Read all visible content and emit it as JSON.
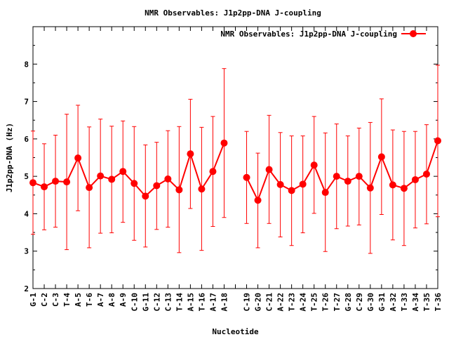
{
  "chart_data": {
    "type": "line",
    "title": "NMR Observables: J1p2pp-DNA J-coupling",
    "xlabel": "Nucleotide",
    "ylabel": "J1p2pp-DNA (Hz)",
    "ylim": [
      2,
      9
    ],
    "yticks": [
      "2",
      "3",
      "4",
      "5",
      "6",
      "7",
      "8"
    ],
    "grid": false,
    "legend_position": "top-right",
    "series": [
      {
        "name": "NMR Observables: J1p2pp-DNA J-coupling",
        "color": "#ff0000",
        "points": [
          {
            "x": 1,
            "label": "G-1",
            "value": 4.83,
            "low": 3.45,
            "high": 6.21
          },
          {
            "x": 2,
            "label": "C-2",
            "value": 4.72,
            "low": 3.57,
            "high": 5.87
          },
          {
            "x": 3,
            "label": "C-3",
            "value": 4.87,
            "low": 3.64,
            "high": 6.1
          },
          {
            "x": 4,
            "label": "T-4",
            "value": 4.85,
            "low": 3.04,
            "high": 6.66
          },
          {
            "x": 5,
            "label": "A-5",
            "value": 5.49,
            "low": 4.08,
            "high": 6.9
          },
          {
            "x": 6,
            "label": "T-6",
            "value": 4.7,
            "low": 3.09,
            "high": 6.32
          },
          {
            "x": 7,
            "label": "A-7",
            "value": 5.01,
            "low": 3.48,
            "high": 6.53
          },
          {
            "x": 8,
            "label": "A-8",
            "value": 4.92,
            "low": 3.49,
            "high": 6.34
          },
          {
            "x": 9,
            "label": "A-9",
            "value": 5.13,
            "low": 3.77,
            "high": 6.48
          },
          {
            "x": 10,
            "label": "C-10",
            "value": 4.81,
            "low": 3.29,
            "high": 6.33
          },
          {
            "x": 11,
            "label": "G-11",
            "value": 4.47,
            "low": 3.11,
            "high": 5.84
          },
          {
            "x": 12,
            "label": "C-12",
            "value": 4.75,
            "low": 3.58,
            "high": 5.91
          },
          {
            "x": 13,
            "label": "C-13",
            "value": 4.93,
            "low": 3.64,
            "high": 6.22
          },
          {
            "x": 14,
            "label": "T-14",
            "value": 4.64,
            "low": 2.96,
            "high": 6.33
          },
          {
            "x": 15,
            "label": "A-15",
            "value": 5.6,
            "low": 4.14,
            "high": 7.06
          },
          {
            "x": 16,
            "label": "T-16",
            "value": 4.66,
            "low": 3.02,
            "high": 6.31
          },
          {
            "x": 17,
            "label": "A-17",
            "value": 5.13,
            "low": 3.66,
            "high": 6.6
          },
          {
            "x": 18,
            "label": "A-18",
            "value": 5.89,
            "low": 3.9,
            "high": 7.88
          },
          {
            "x": 19,
            "label": "",
            "value": null,
            "low": null,
            "high": null
          },
          {
            "x": 20,
            "label": "C-19",
            "value": 4.97,
            "low": 3.74,
            "high": 6.2
          },
          {
            "x": 21,
            "label": "G-20",
            "value": 4.36,
            "low": 3.09,
            "high": 5.62
          },
          {
            "x": 22,
            "label": "C-21",
            "value": 5.18,
            "low": 3.74,
            "high": 6.63
          },
          {
            "x": 23,
            "label": "A-22",
            "value": 4.78,
            "low": 3.38,
            "high": 6.17
          },
          {
            "x": 24,
            "label": "T-23",
            "value": 4.62,
            "low": 3.15,
            "high": 6.08
          },
          {
            "x": 25,
            "label": "A-24",
            "value": 4.79,
            "low": 3.49,
            "high": 6.08
          },
          {
            "x": 26,
            "label": "T-25",
            "value": 5.3,
            "low": 4.01,
            "high": 6.6
          },
          {
            "x": 27,
            "label": "T-26",
            "value": 4.57,
            "low": 2.99,
            "high": 6.16
          },
          {
            "x": 28,
            "label": "T-27",
            "value": 5.0,
            "low": 3.6,
            "high": 6.4
          },
          {
            "x": 29,
            "label": "G-28",
            "value": 4.87,
            "low": 3.67,
            "high": 6.08
          },
          {
            "x": 30,
            "label": "C-29",
            "value": 5.0,
            "low": 3.7,
            "high": 6.29
          },
          {
            "x": 31,
            "label": "G-30",
            "value": 4.69,
            "low": 2.94,
            "high": 6.44
          },
          {
            "x": 32,
            "label": "G-31",
            "value": 5.52,
            "low": 3.98,
            "high": 7.07
          },
          {
            "x": 33,
            "label": "A-32",
            "value": 4.77,
            "low": 3.3,
            "high": 6.24
          },
          {
            "x": 34,
            "label": "T-33",
            "value": 4.68,
            "low": 3.15,
            "high": 6.2
          },
          {
            "x": 35,
            "label": "A-34",
            "value": 4.91,
            "low": 3.62,
            "high": 6.2
          },
          {
            "x": 36,
            "label": "T-35",
            "value": 5.06,
            "low": 3.73,
            "high": 6.38
          },
          {
            "x": 37,
            "label": "T-36",
            "value": 5.95,
            "low": 3.92,
            "high": 7.97
          }
        ]
      }
    ]
  }
}
